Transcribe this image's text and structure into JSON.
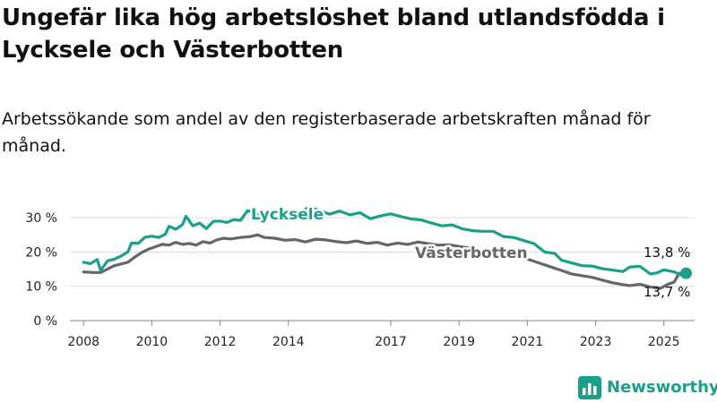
{
  "title": "Ungefär lika hög arbetslöshet bland utlandsfödda i Lycksele och Västerbotten",
  "subtitle": "Arbetssökande som andel av den registerbaserade arbetskraften månad för månad.",
  "brand": {
    "name": "Newsworthy",
    "icon": "bar-chart-logo-icon",
    "color": "#1a9f8a"
  },
  "chart_data": {
    "type": "line",
    "ylim": [
      0,
      30
    ],
    "xlim": [
      2007.6,
      2025.9
    ],
    "y_ticks": [
      {
        "value": 0,
        "label": "0 %"
      },
      {
        "value": 10,
        "label": "10 %"
      },
      {
        "value": 20,
        "label": "20 %"
      },
      {
        "value": 30,
        "label": "30 %"
      }
    ],
    "x_ticks": [
      {
        "value": 2008,
        "label": "2008"
      },
      {
        "value": 2010,
        "label": "2010"
      },
      {
        "value": 2012,
        "label": "2012"
      },
      {
        "value": 2014,
        "label": "2014"
      },
      {
        "value": 2017,
        "label": "2017"
      },
      {
        "value": 2019,
        "label": "2019"
      },
      {
        "value": 2021,
        "label": "2021"
      },
      {
        "value": 2023,
        "label": "2023"
      },
      {
        "value": 2025,
        "label": "2025"
      }
    ],
    "grid": true,
    "series": [
      {
        "name": "Lycksele",
        "color": "#1a9f8a",
        "points": [
          [
            2008.0,
            17.0
          ],
          [
            2008.2,
            16.6
          ],
          [
            2008.4,
            17.8
          ],
          [
            2008.5,
            14.6
          ],
          [
            2008.7,
            17.4
          ],
          [
            2008.9,
            17.9
          ],
          [
            2009.1,
            18.8
          ],
          [
            2009.3,
            20.0
          ],
          [
            2009.4,
            22.6
          ],
          [
            2009.6,
            22.5
          ],
          [
            2009.8,
            24.3
          ],
          [
            2010.0,
            24.6
          ],
          [
            2010.2,
            24.2
          ],
          [
            2010.4,
            25.2
          ],
          [
            2010.5,
            27.5
          ],
          [
            2010.7,
            26.6
          ],
          [
            2010.9,
            28.0
          ],
          [
            2011.0,
            30.4
          ],
          [
            2011.2,
            27.6
          ],
          [
            2011.4,
            28.4
          ],
          [
            2011.6,
            26.8
          ],
          [
            2011.8,
            28.9
          ],
          [
            2012.0,
            29.0
          ],
          [
            2012.2,
            28.6
          ],
          [
            2012.4,
            29.4
          ],
          [
            2012.6,
            29.2
          ],
          [
            2012.8,
            32.0
          ],
          [
            2013.0,
            31.5
          ],
          [
            2013.2,
            30.0
          ],
          [
            2013.4,
            31.2
          ],
          [
            2013.7,
            30.6
          ],
          [
            2014.0,
            31.8
          ],
          [
            2014.3,
            31.4
          ],
          [
            2014.6,
            33.0
          ],
          [
            2014.9,
            32.2
          ],
          [
            2015.2,
            31.0
          ],
          [
            2015.5,
            31.9
          ],
          [
            2015.8,
            30.8
          ],
          [
            2016.1,
            31.4
          ],
          [
            2016.4,
            29.7
          ],
          [
            2016.7,
            30.5
          ],
          [
            2017.0,
            31.1
          ],
          [
            2017.3,
            30.3
          ],
          [
            2017.6,
            29.6
          ],
          [
            2017.9,
            29.3
          ],
          [
            2018.2,
            28.4
          ],
          [
            2018.5,
            27.6
          ],
          [
            2018.8,
            27.9
          ],
          [
            2019.1,
            26.7
          ],
          [
            2019.4,
            26.2
          ],
          [
            2019.7,
            26.0
          ],
          [
            2020.0,
            26.0
          ],
          [
            2020.3,
            24.5
          ],
          [
            2020.6,
            24.2
          ],
          [
            2020.9,
            23.3
          ],
          [
            2021.2,
            22.4
          ],
          [
            2021.5,
            20.0
          ],
          [
            2021.8,
            19.6
          ],
          [
            2022.0,
            17.6
          ],
          [
            2022.3,
            16.8
          ],
          [
            2022.6,
            16.0
          ],
          [
            2022.9,
            15.9
          ],
          [
            2023.2,
            15.1
          ],
          [
            2023.5,
            14.7
          ],
          [
            2023.8,
            14.3
          ],
          [
            2024.0,
            15.6
          ],
          [
            2024.3,
            15.8
          ],
          [
            2024.6,
            13.6
          ],
          [
            2024.8,
            13.9
          ],
          [
            2025.0,
            14.8
          ],
          [
            2025.3,
            14.2
          ],
          [
            2025.5,
            13.3
          ],
          [
            2025.65,
            13.8
          ]
        ],
        "end_label": "13,8 %"
      },
      {
        "name": "Västerbotten",
        "color": "#666666",
        "points": [
          [
            2008.0,
            14.2
          ],
          [
            2008.3,
            14.0
          ],
          [
            2008.5,
            14.0
          ],
          [
            2008.7,
            15.0
          ],
          [
            2008.9,
            16.0
          ],
          [
            2009.1,
            16.5
          ],
          [
            2009.3,
            17.0
          ],
          [
            2009.5,
            18.5
          ],
          [
            2009.7,
            19.8
          ],
          [
            2009.9,
            20.8
          ],
          [
            2010.1,
            21.5
          ],
          [
            2010.3,
            22.2
          ],
          [
            2010.5,
            22.0
          ],
          [
            2010.7,
            22.8
          ],
          [
            2010.9,
            22.2
          ],
          [
            2011.1,
            22.5
          ],
          [
            2011.3,
            22.0
          ],
          [
            2011.5,
            23.0
          ],
          [
            2011.7,
            22.6
          ],
          [
            2011.9,
            23.5
          ],
          [
            2012.1,
            24.0
          ],
          [
            2012.3,
            23.8
          ],
          [
            2012.6,
            24.2
          ],
          [
            2012.9,
            24.5
          ],
          [
            2013.1,
            25.0
          ],
          [
            2013.3,
            24.2
          ],
          [
            2013.6,
            24.0
          ],
          [
            2013.9,
            23.4
          ],
          [
            2014.2,
            23.6
          ],
          [
            2014.5,
            22.9
          ],
          [
            2014.8,
            23.7
          ],
          [
            2015.1,
            23.5
          ],
          [
            2015.4,
            23.0
          ],
          [
            2015.7,
            22.7
          ],
          [
            2016.0,
            23.2
          ],
          [
            2016.3,
            22.5
          ],
          [
            2016.6,
            22.8
          ],
          [
            2016.9,
            22.0
          ],
          [
            2017.2,
            22.6
          ],
          [
            2017.5,
            22.2
          ],
          [
            2017.8,
            22.9
          ],
          [
            2018.1,
            22.4
          ],
          [
            2018.4,
            22.0
          ],
          [
            2018.7,
            22.1
          ],
          [
            2019.0,
            21.6
          ],
          [
            2019.3,
            21.1
          ],
          [
            2019.6,
            20.6
          ],
          [
            2019.9,
            20.1
          ],
          [
            2020.2,
            19.6
          ],
          [
            2020.5,
            19.2
          ],
          [
            2020.8,
            18.6
          ],
          [
            2021.1,
            17.6
          ],
          [
            2021.4,
            16.6
          ],
          [
            2021.7,
            15.6
          ],
          [
            2022.0,
            14.6
          ],
          [
            2022.3,
            13.6
          ],
          [
            2022.6,
            13.1
          ],
          [
            2022.9,
            12.6
          ],
          [
            2023.2,
            11.8
          ],
          [
            2023.5,
            11.0
          ],
          [
            2023.8,
            10.5
          ],
          [
            2024.0,
            10.2
          ],
          [
            2024.3,
            10.6
          ],
          [
            2024.6,
            9.8
          ],
          [
            2024.9,
            9.4
          ],
          [
            2025.1,
            10.5
          ],
          [
            2025.3,
            11.2
          ],
          [
            2025.45,
            13.8
          ],
          [
            2025.55,
            13.7
          ]
        ],
        "end_label": "13,7 %"
      }
    ]
  }
}
